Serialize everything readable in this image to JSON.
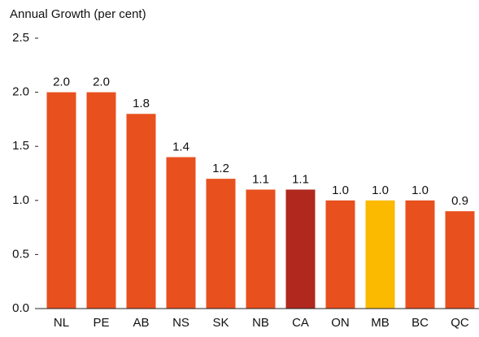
{
  "chart_data": {
    "type": "bar",
    "y_label": "Annual Growth (per cent)",
    "categories": [
      "NL",
      "PE",
      "AB",
      "NS",
      "SK",
      "NB",
      "CA",
      "ON",
      "MB",
      "BC",
      "QC"
    ],
    "values": [
      2.0,
      2.0,
      1.8,
      1.4,
      1.2,
      1.1,
      1.1,
      1.0,
      1.0,
      1.0,
      0.9
    ],
    "value_labels": [
      "2.0",
      "2.0",
      "1.8",
      "1.4",
      "1.2",
      "1.1",
      "1.1",
      "1.0",
      "1.0",
      "1.0",
      "0.9"
    ],
    "colors": [
      "#e8501e",
      "#e8501e",
      "#e8501e",
      "#e8501e",
      "#e8501e",
      "#e8501e",
      "#b0281e",
      "#e8501e",
      "#fbb900",
      "#e8501e",
      "#e8501e"
    ],
    "ylim": [
      0,
      2.5
    ],
    "yticks": [
      {
        "value": 0,
        "label": "0.0"
      },
      0.5,
      {
        "value": 1,
        "label": "1.0"
      },
      1.5,
      {
        "value": 2,
        "label": "2.0"
      },
      2.5
    ],
    "grid": false
  }
}
